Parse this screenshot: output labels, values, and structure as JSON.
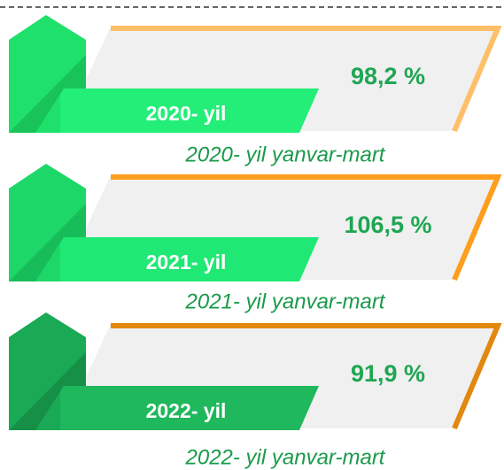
{
  "items": [
    {
      "label": "2020- yil",
      "value": "98,2 %",
      "caption": "2020- yil yanvar-mart"
    },
    {
      "label": "2021- yil",
      "value": "106,5 %",
      "caption": "2021- yil yanvar-mart"
    },
    {
      "label": "2022- yil",
      "value": "91,9 %",
      "caption": "2022- yil yanvar-mart"
    }
  ]
}
